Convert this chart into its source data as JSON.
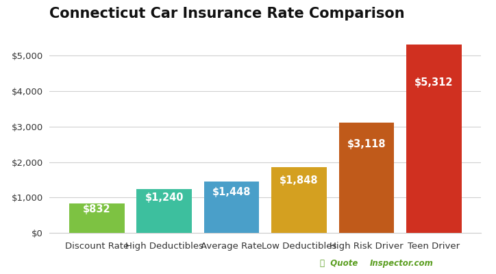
{
  "title": "Connecticut Car Insurance Rate Comparison",
  "categories": [
    "Discount Rate",
    "High Deductibles",
    "Average Rate",
    "Low Deductibles",
    "High Risk Driver",
    "Teen Driver"
  ],
  "values": [
    832,
    1240,
    1448,
    1848,
    3118,
    5312
  ],
  "bar_colors": [
    "#7dc242",
    "#3dbf9e",
    "#4a9fc9",
    "#d4a020",
    "#c05a1a",
    "#d03020"
  ],
  "labels": [
    "$832",
    "$1,240",
    "$1,448",
    "$1,848",
    "$3,118",
    "$5,312"
  ],
  "ylim": [
    0,
    5800
  ],
  "yticks": [
    0,
    1000,
    2000,
    3000,
    4000,
    5000
  ],
  "ytick_labels": [
    "$0",
    "$1,000",
    "$2,000",
    "$3,000",
    "$4,000",
    "$5,000"
  ],
  "title_fontsize": 15,
  "label_fontsize": 10.5,
  "tick_fontsize": 9.5,
  "background_color": "#ffffff",
  "grid_color": "#d0d0d0",
  "watermark_text": "QuoteInspector.com",
  "watermark_color_bold": "#5a9e20",
  "watermark_color_normal": "#555555",
  "bar_width": 0.82
}
